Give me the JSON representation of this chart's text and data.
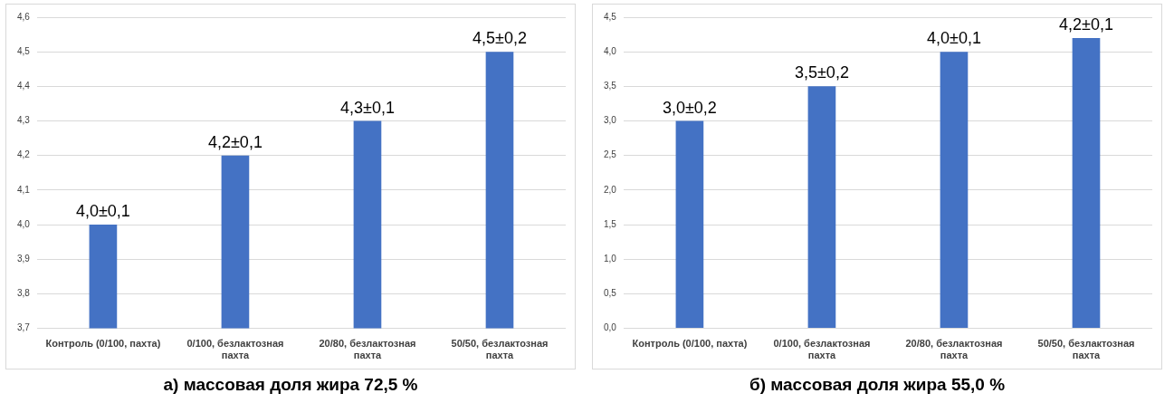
{
  "chart_data": [
    {
      "type": "bar",
      "title": "а) массовая доля жира 72,5 %",
      "categories": [
        "Контроль (0/100, пахта)",
        "0/100, безлактозная пахта",
        "20/80, безлактозная пахта",
        "50/50, безлактозная пахта"
      ],
      "values": [
        4.0,
        4.2,
        4.3,
        4.5
      ],
      "value_labels": [
        "4,0±0,1",
        "4,2±0,1",
        "4,3±0,1",
        "4,5±0,2"
      ],
      "color": "#4472c4",
      "ylim": [
        3.7,
        4.6
      ],
      "yticks": [
        {
          "value": 3.7,
          "label": "3,7"
        },
        {
          "value": 3.8,
          "label": "3,8"
        },
        {
          "value": 3.9,
          "label": "3,9"
        },
        {
          "value": 4.0,
          "label": "4,0"
        },
        {
          "value": 4.1,
          "label": "4,1"
        },
        {
          "value": 4.2,
          "label": "4,2"
        },
        {
          "value": 4.3,
          "label": "4,3"
        },
        {
          "value": 4.4,
          "label": "4,4"
        },
        {
          "value": 4.5,
          "label": "4,5"
        },
        {
          "value": 4.6,
          "label": "4,6"
        }
      ],
      "grid": "y"
    },
    {
      "type": "bar",
      "title": "б) массовая доля жира 55,0 %",
      "categories": [
        "Контроль (0/100, пахта)",
        "0/100, безлактозная пахта",
        "20/80, безлактозная пахта",
        "50/50, безлактозная пахта"
      ],
      "values": [
        3.0,
        3.5,
        4.0,
        4.2
      ],
      "value_labels": [
        "3,0±0,2",
        "3,5±0,2",
        "4,0±0,1",
        "4,2±0,1"
      ],
      "color": "#4472c4",
      "ylim": [
        0,
        4.5
      ],
      "yticks": [
        {
          "value": 0,
          "label": "0,0"
        },
        {
          "value": 0.5,
          "label": "0,5"
        },
        {
          "value": 1.0,
          "label": "1,0"
        },
        {
          "value": 1.5,
          "label": "1,5"
        },
        {
          "value": 2.0,
          "label": "2,0"
        },
        {
          "value": 2.5,
          "label": "2,5"
        },
        {
          "value": 3.0,
          "label": "3,0"
        },
        {
          "value": 3.5,
          "label": "3,5"
        },
        {
          "value": 4.0,
          "label": "4,0"
        },
        {
          "value": 4.5,
          "label": "4,5"
        }
      ],
      "grid": "y"
    }
  ]
}
